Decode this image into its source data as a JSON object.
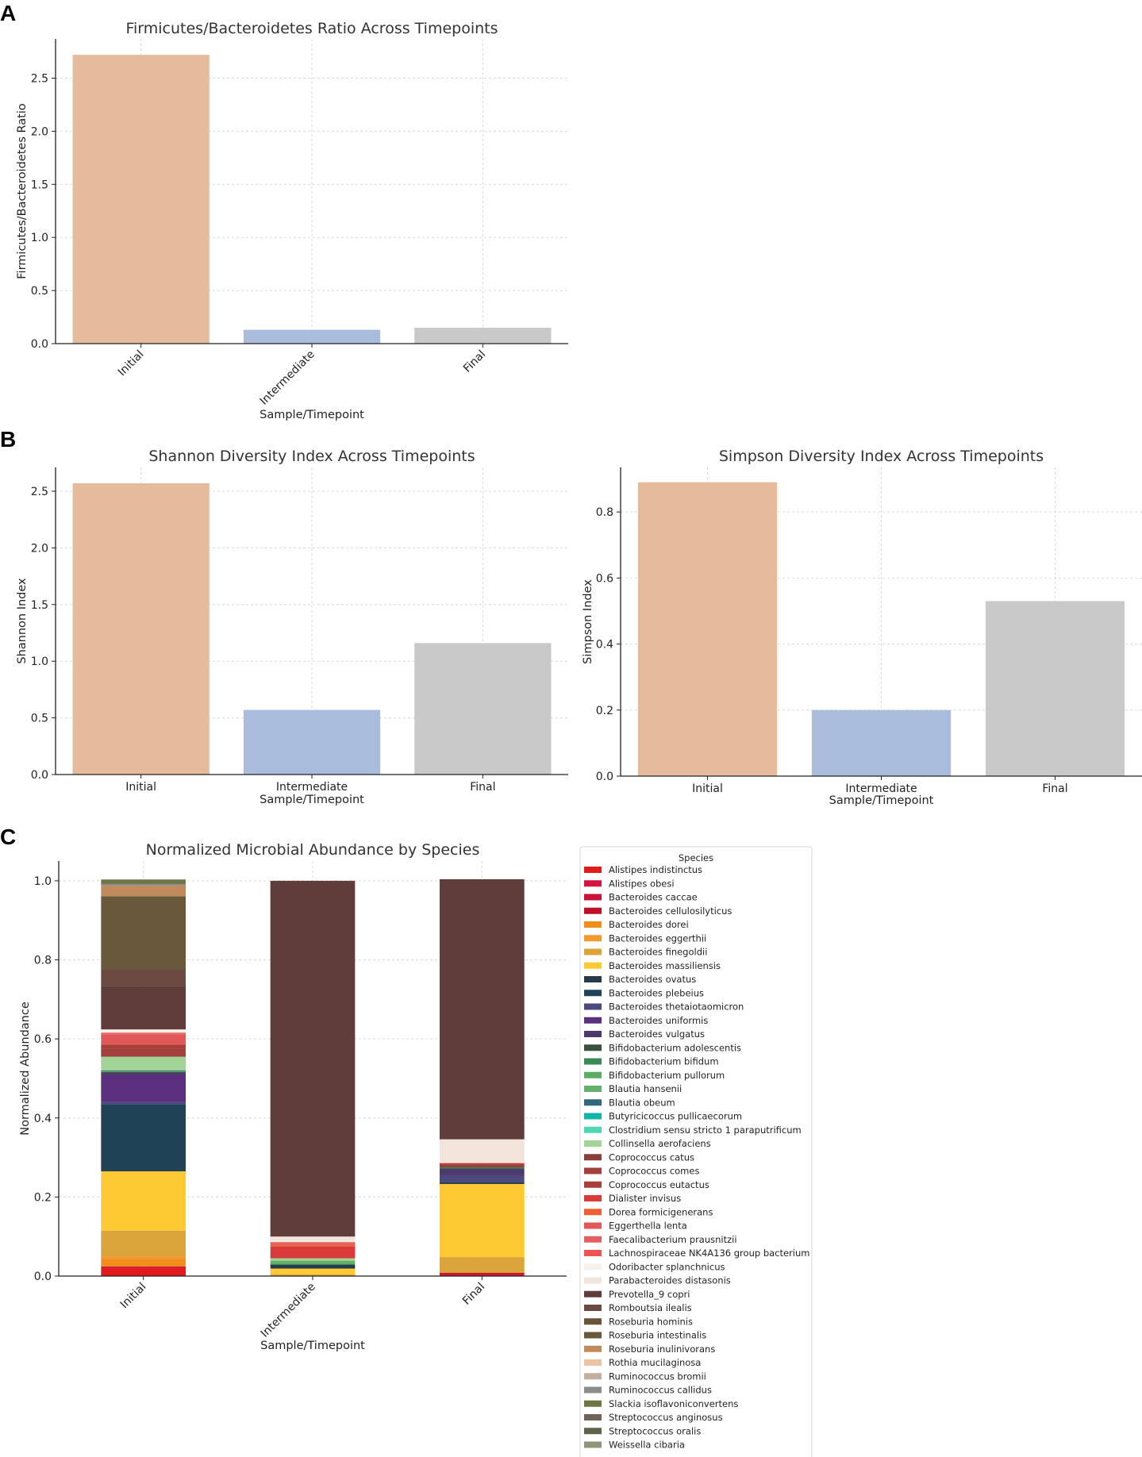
{
  "panels": {
    "a": "A",
    "b": "B",
    "c": "C"
  },
  "chart_data": [
    {
      "id": "fb",
      "type": "bar",
      "title": "Firmicutes/Bacteroidetes Ratio Across Timepoints",
      "xlabel": "Sample/Timepoint",
      "ylabel": "Firmicutes/Bacteroidetes Ratio",
      "categories": [
        "Initial",
        "Intermediate",
        "Final"
      ],
      "values": [
        2.72,
        0.13,
        0.15
      ],
      "colors": [
        "#e6bb9b",
        "#a9bcdc",
        "#c9c9c9"
      ],
      "ylim": [
        0,
        2.87
      ],
      "yticks": [
        "0.0",
        "0.5",
        "1.0",
        "1.5",
        "2.0",
        "2.5"
      ],
      "rotated_xticks": true,
      "grid": true
    },
    {
      "id": "shannon",
      "type": "bar",
      "title": "Shannon Diversity Index Across Timepoints",
      "xlabel": "Sample/Timepoint",
      "ylabel": "Shannon Index",
      "categories": [
        "Initial",
        "Intermediate",
        "Final"
      ],
      "values": [
        2.57,
        0.57,
        1.16
      ],
      "colors": [
        "#e6bb9b",
        "#a9bcdc",
        "#c9c9c9"
      ],
      "ylim": [
        0,
        2.71
      ],
      "yticks": [
        "0.0",
        "0.5",
        "1.0",
        "1.5",
        "2.0",
        "2.5"
      ],
      "rotated_xticks": false,
      "grid": true
    },
    {
      "id": "simpson",
      "type": "bar",
      "title": "Simpson Diversity Index Across Timepoints",
      "xlabel": "Sample/Timepoint",
      "ylabel": "Simpson Index",
      "categories": [
        "Initial",
        "Intermediate",
        "Final"
      ],
      "values": [
        0.89,
        0.2,
        0.53
      ],
      "colors": [
        "#e6bb9b",
        "#a9bcdc",
        "#c9c9c9"
      ],
      "ylim": [
        0,
        0.935
      ],
      "yticks": [
        "0.0",
        "0.2",
        "0.4",
        "0.6",
        "0.8"
      ],
      "rotated_xticks": false,
      "grid": true
    },
    {
      "id": "abundance",
      "type": "bar",
      "stacked": true,
      "title": "Normalized Microbial Abundance by Species",
      "xlabel": "Sample/Timepoint",
      "ylabel": "Normalized Abundance",
      "categories": [
        "Initial",
        "Intermediate",
        "Final"
      ],
      "ylim": [
        0,
        1.05
      ],
      "yticks": [
        "0.0",
        "0.2",
        "0.4",
        "0.6",
        "0.8",
        "1.0"
      ],
      "rotated_xticks": true,
      "grid": true,
      "legend_title": "Species",
      "legend_position": "outside right",
      "series": [
        {
          "name": "Alistipes indistinctus",
          "color": "#e31a1c",
          "values": [
            0.02,
            0,
            0.002
          ]
        },
        {
          "name": "Alistipes obesi",
          "color": "#d4143f",
          "values": [
            0.002,
            0,
            0.002
          ]
        },
        {
          "name": "Bacteroides caccae",
          "color": "#c8143c",
          "values": [
            0.002,
            0,
            0.002
          ]
        },
        {
          "name": "Bacteroides cellulosilyticus",
          "color": "#c0102a",
          "values": [
            0,
            0,
            0.002
          ]
        },
        {
          "name": "Bacteroides dorei",
          "color": "#f28e1b",
          "values": [
            0.02,
            0,
            0
          ]
        },
        {
          "name": "Bacteroides eggerthii",
          "color": "#f29a2e",
          "values": [
            0.006,
            0,
            0
          ]
        },
        {
          "name": "Bacteroides finegoldii",
          "color": "#dba43a",
          "values": [
            0.065,
            0.004,
            0.04
          ]
        },
        {
          "name": "Bacteroides massiliensis",
          "color": "#fdca33",
          "values": [
            0.15,
            0.015,
            0.185
          ]
        },
        {
          "name": "Bacteroides ovatus",
          "color": "#263a4a",
          "values": [
            0,
            0.01,
            0.004
          ]
        },
        {
          "name": "Bacteroides plebeius",
          "color": "#1f4257",
          "values": [
            0.17,
            0,
            0
          ]
        },
        {
          "name": "Bacteroides thetaiotaomicron",
          "color": "#4a4a7e",
          "values": [
            0.005,
            0,
            0.018
          ]
        },
        {
          "name": "Bacteroides uniformis",
          "color": "#5c2e7e",
          "values": [
            0.07,
            0,
            0.002
          ]
        },
        {
          "name": "Bacteroides vulgatus",
          "color": "#4b3a6a",
          "values": [
            0.004,
            0,
            0.015
          ]
        },
        {
          "name": "Bifidobacterium adolescentis",
          "color": "#36523a",
          "values": [
            0.002,
            0,
            0
          ]
        },
        {
          "name": "Bifidobacterium bifidum",
          "color": "#3a8a55",
          "values": [
            0,
            0,
            0.003
          ]
        },
        {
          "name": "Bifidobacterium pullorum",
          "color": "#5aae61",
          "values": [
            0,
            0.006,
            0
          ]
        },
        {
          "name": "Blautia hansenii",
          "color": "#66b06e",
          "values": [
            0.002,
            0.004,
            0
          ]
        },
        {
          "name": "Blautia obeum",
          "color": "#2f6a7c",
          "values": [
            0.002,
            0,
            0
          ]
        },
        {
          "name": "Butyricicoccus pullicaecorum",
          "color": "#12b5a8",
          "values": [
            0,
            0,
            0
          ]
        },
        {
          "name": "Clostridium sensu stricto 1 paraputrificum",
          "color": "#4fd6b3",
          "values": [
            0,
            0,
            0
          ]
        },
        {
          "name": "Collinsella aerofaciens",
          "color": "#a2d397",
          "values": [
            0.035,
            0.006,
            0
          ]
        },
        {
          "name": "Coprococcus catus",
          "color": "#8b3f3a",
          "values": [
            0.002,
            0,
            0.004
          ]
        },
        {
          "name": "Coprococcus comes",
          "color": "#a33f3c",
          "values": [
            0.018,
            0,
            0.004
          ]
        },
        {
          "name": "Coprococcus eutactus",
          "color": "#a8403a",
          "values": [
            0.01,
            0,
            0
          ]
        },
        {
          "name": "Dialister invisus",
          "color": "#d93b3b",
          "values": [
            0.002,
            0.03,
            0.003
          ]
        },
        {
          "name": "Dorea formicigenerans",
          "color": "#ee6033",
          "values": [
            0,
            0.004,
            0
          ]
        },
        {
          "name": "Eggerthella lenta",
          "color": "#e05858",
          "values": [
            0.025,
            0.004,
            0
          ]
        },
        {
          "name": "Faecalibacterium prausnitzii",
          "color": "#e45f5f",
          "values": [
            0.002,
            0,
            0
          ]
        },
        {
          "name": "Lachnospiraceae NK4A136 group bacterium",
          "color": "#ef5350",
          "values": [
            0.002,
            0.003,
            0
          ]
        },
        {
          "name": "Odoribacter splanchnicus",
          "color": "#f7efe9",
          "values": [
            0.008,
            0.004,
            0.002
          ]
        },
        {
          "name": "Parabacteroides distasonis",
          "color": "#f2e4da",
          "values": [
            0,
            0.01,
            0.058
          ]
        },
        {
          "name": "Prevotella_9 copri",
          "color": "#5e3d3a",
          "values": [
            0.11,
            0.9,
            0.658
          ]
        },
        {
          "name": "Romboutsia ilealis",
          "color": "#6b4a42",
          "values": [
            0.042,
            0,
            0
          ]
        },
        {
          "name": "Roseburia hominis",
          "color": "#6a5238",
          "values": [
            0,
            0,
            0
          ]
        },
        {
          "name": "Roseburia intestinalis",
          "color": "#6a583c",
          "values": [
            0.185,
            0,
            0
          ]
        },
        {
          "name": "Roseburia inulinivorans",
          "color": "#c08a5a",
          "values": [
            0.027,
            0,
            0
          ]
        },
        {
          "name": "Rothia mucilaginosa",
          "color": "#ecc4a4",
          "values": [
            0,
            0,
            0
          ]
        },
        {
          "name": "Ruminococcus bromii",
          "color": "#c4ae9e",
          "values": [
            0,
            0,
            0
          ]
        },
        {
          "name": "Ruminococcus callidus",
          "color": "#8c8c8c",
          "values": [
            0.004,
            0,
            0
          ]
        },
        {
          "name": "Slackia isoflavoniconvertens",
          "color": "#6e7444",
          "values": [
            0.01,
            0,
            0
          ]
        },
        {
          "name": "Streptococcus anginosus",
          "color": "#6f6456",
          "values": [
            0,
            0,
            0
          ]
        },
        {
          "name": "Streptococcus oralis",
          "color": "#5d6548",
          "values": [
            0,
            0,
            0
          ]
        },
        {
          "name": "Weissella cibaria",
          "color": "#8d9479",
          "values": [
            0.002,
            0,
            0
          ]
        }
      ]
    }
  ]
}
